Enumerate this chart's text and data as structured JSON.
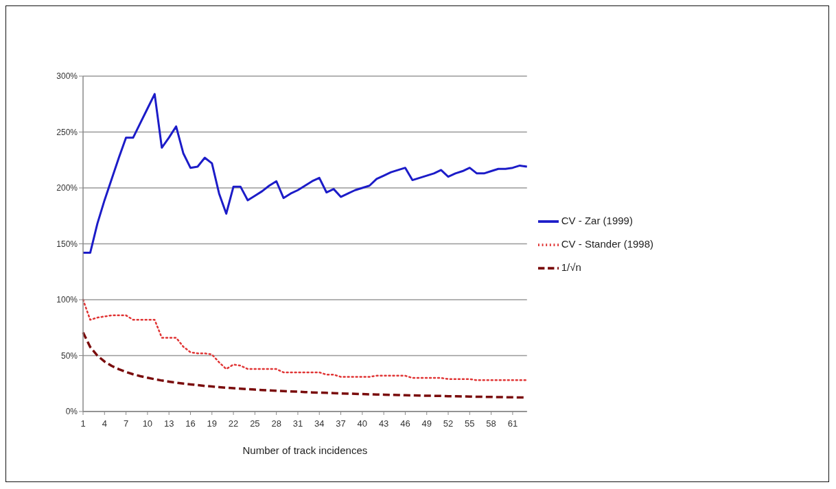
{
  "chart_data": {
    "type": "line",
    "xlabel": "Number of track incidences",
    "categories": [
      "1",
      null,
      null,
      "4",
      null,
      null,
      "7",
      null,
      null,
      "10",
      null,
      null,
      "13",
      null,
      null,
      "16",
      null,
      null,
      "19",
      null,
      null,
      "22",
      null,
      null,
      "25",
      null,
      null,
      "28",
      null,
      null,
      "31",
      null,
      null,
      "34",
      null,
      null,
      "37",
      null,
      null,
      "40",
      null,
      null,
      "43",
      null,
      null,
      "46",
      null,
      null,
      "49",
      null,
      null,
      "52",
      null,
      null,
      "55",
      null,
      null,
      "58",
      null,
      null,
      "61",
      null,
      null
    ],
    "series": [
      {
        "name": "CV - Zar (1999)",
        "color": "#1c1cc8",
        "line_style": "solid",
        "values": [
          142,
          142,
          168,
          189,
          208,
          227,
          245,
          245,
          258,
          271,
          284,
          236,
          245,
          255,
          231,
          218,
          219,
          227,
          222,
          195,
          177,
          201,
          201,
          189,
          193,
          197,
          202,
          206,
          191,
          195,
          198,
          202,
          206,
          209,
          196,
          199,
          192,
          195,
          198,
          200,
          202,
          208,
          211,
          214,
          216,
          218,
          207,
          209,
          211,
          213,
          216,
          210,
          213,
          215,
          218,
          213,
          213,
          215,
          217,
          217,
          218,
          220,
          219
        ]
      },
      {
        "name": "CV - Stander (1998)",
        "color": "#e03434",
        "line_style": "dotted",
        "values": [
          100,
          82,
          84,
          85,
          86,
          86,
          86,
          82,
          82,
          82,
          82,
          66,
          66,
          66,
          58,
          53,
          52,
          52,
          51,
          44,
          38,
          42,
          41,
          38,
          38,
          38,
          38,
          38,
          35,
          35,
          35,
          35,
          35,
          35,
          33,
          33,
          31,
          31,
          31,
          31,
          31,
          32,
          32,
          32,
          32,
          32,
          30,
          30,
          30,
          30,
          30,
          29,
          29,
          29,
          29,
          28,
          28,
          28,
          28,
          28,
          28,
          28,
          28
        ]
      },
      {
        "name": "1/√n",
        "color": "#7a0c0c",
        "line_style": "dashed",
        "values": [
          70.7,
          57.7,
          50,
          44.7,
          40.8,
          37.8,
          35.4,
          33.3,
          31.6,
          30.2,
          28.9,
          27.7,
          26.7,
          25.8,
          25,
          24.3,
          23.6,
          22.9,
          22.4,
          21.8,
          21.3,
          20.9,
          20.4,
          20,
          19.6,
          19.2,
          18.9,
          18.6,
          18.3,
          18,
          17.7,
          17.4,
          17.1,
          16.9,
          16.7,
          16.4,
          16.2,
          16,
          15.8,
          15.6,
          15.4,
          15.2,
          15.1,
          14.9,
          14.7,
          14.6,
          14.4,
          14.3,
          14.1,
          14,
          13.9,
          13.7,
          13.6,
          13.5,
          13.4,
          13.2,
          13.1,
          13,
          12.9,
          12.8,
          12.7,
          12.6,
          12.5
        ]
      }
    ],
    "ylim": [
      0,
      300
    ],
    "yticks": [
      {
        "value": 0,
        "label": "0%"
      },
      {
        "value": 50,
        "label": "50%"
      },
      {
        "value": 100,
        "label": "100%"
      },
      {
        "value": 150,
        "label": "150%"
      },
      {
        "value": 200,
        "label": "200%"
      },
      {
        "value": 250,
        "label": "250%"
      },
      {
        "value": 300,
        "label": "300%"
      }
    ],
    "grid": "y",
    "legend": "right",
    "marker": "none"
  }
}
